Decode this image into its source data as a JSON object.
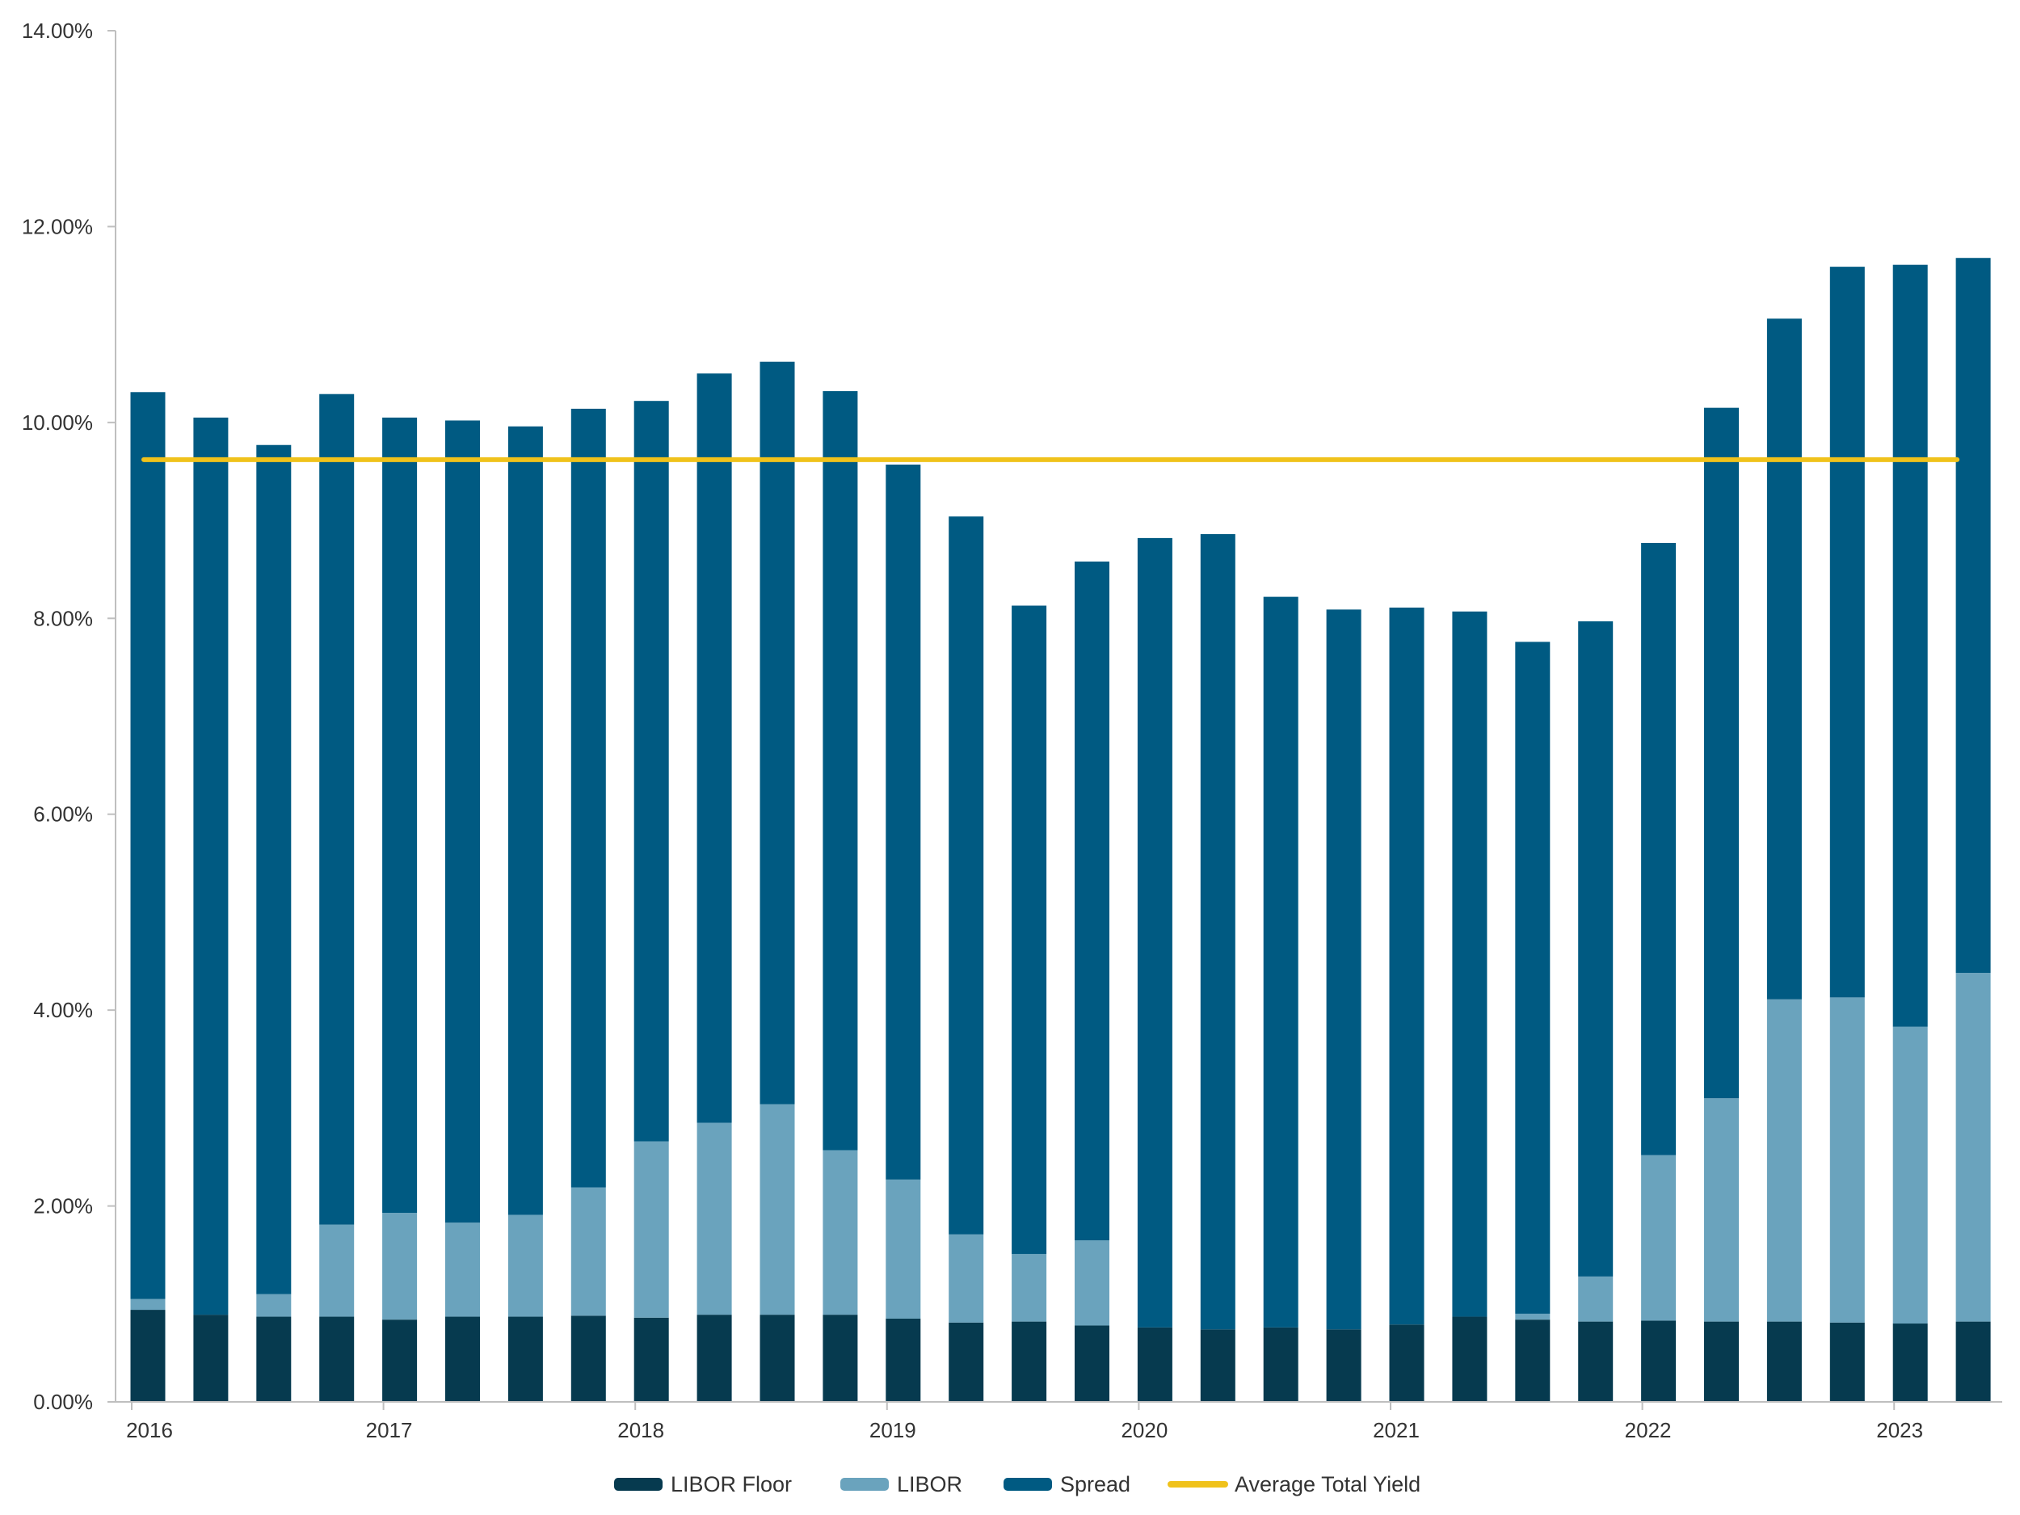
{
  "chart_data": {
    "type": "bar",
    "stacked": true,
    "categories": [
      "2016 Q1",
      "2016 Q2",
      "2016 Q3",
      "2016 Q4",
      "2017 Q1",
      "2017 Q2",
      "2017 Q3",
      "2017 Q4",
      "2018 Q1",
      "2018 Q2",
      "2018 Q3",
      "2018 Q4",
      "2019 Q1",
      "2019 Q2",
      "2019 Q3",
      "2019 Q4",
      "2020 Q1",
      "2020 Q2",
      "2020 Q3",
      "2020 Q4",
      "2021 Q1",
      "2021 Q2",
      "2021 Q3",
      "2021 Q4",
      "2022 Q1",
      "2022 Q2",
      "2022 Q3",
      "2022 Q4",
      "2023 Q1",
      "2023 Q2"
    ],
    "x_tick_labels": [
      {
        "label": "2016",
        "category_index": 0
      },
      {
        "label": "2017",
        "category_index": 4
      },
      {
        "label": "2018",
        "category_index": 8
      },
      {
        "label": "2019",
        "category_index": 12
      },
      {
        "label": "2020",
        "category_index": 16
      },
      {
        "label": "2021",
        "category_index": 20
      },
      {
        "label": "2022",
        "category_index": 24
      },
      {
        "label": "2023",
        "category_index": 28
      }
    ],
    "series": [
      {
        "name": "LIBOR Floor",
        "color": "#063a4f",
        "values": [
          0.94,
          0.89,
          0.87,
          0.87,
          0.84,
          0.87,
          0.87,
          0.88,
          0.86,
          0.89,
          0.89,
          0.89,
          0.85,
          0.81,
          0.82,
          0.78,
          0.76,
          0.74,
          0.76,
          0.74,
          0.79,
          0.87,
          0.84,
          0.82,
          0.83,
          0.82,
          0.82,
          0.81,
          0.8,
          0.82
        ]
      },
      {
        "name": "LIBOR",
        "color": "#6aa3bd",
        "values": [
          0.11,
          0.0,
          0.23,
          0.94,
          1.09,
          0.96,
          1.04,
          1.31,
          1.8,
          1.96,
          2.15,
          1.68,
          1.42,
          0.9,
          0.69,
          0.87,
          0.0,
          0.0,
          0.0,
          0.0,
          0.0,
          0.0,
          0.06,
          0.46,
          1.69,
          2.28,
          3.29,
          3.32,
          3.03,
          3.56
        ]
      },
      {
        "name": "Spread",
        "color": "#005a82",
        "values": [
          9.26,
          9.16,
          8.67,
          8.48,
          8.12,
          8.19,
          8.05,
          7.95,
          7.56,
          7.65,
          7.58,
          7.75,
          7.3,
          7.33,
          6.62,
          6.93,
          8.06,
          8.12,
          7.46,
          7.35,
          7.32,
          7.2,
          6.86,
          6.69,
          6.25,
          7.05,
          6.95,
          7.46,
          7.78,
          7.3
        ]
      }
    ],
    "line": {
      "name": "Average Total Yield",
      "color": "#f0c21b",
      "value": 9.62
    },
    "y_ticks": [
      "0.00%",
      "2.00%",
      "4.00%",
      "6.00%",
      "8.00%",
      "10.00%",
      "12.00%",
      "14.00%"
    ],
    "ylim": [
      0,
      14
    ],
    "title": "",
    "xlabel": "",
    "ylabel": "",
    "legend_position": "bottom",
    "grid": false
  }
}
